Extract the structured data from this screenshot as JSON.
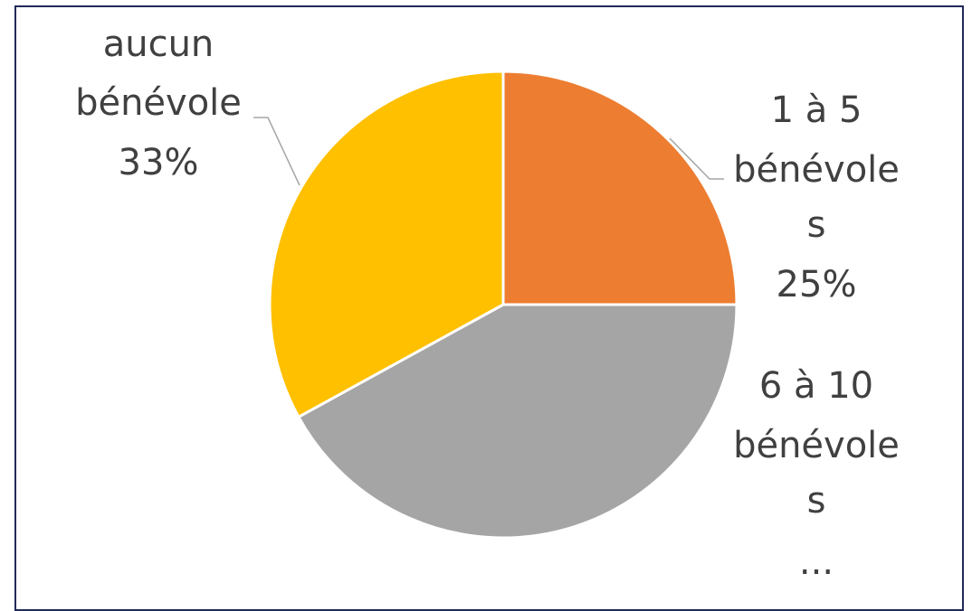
{
  "chart_data": {
    "type": "pie",
    "slices": [
      {
        "category": "1 à 5 bénévoles",
        "value": 25,
        "color": "#ED7D31",
        "label_lines": [
          "1 à 5",
          "bénévole",
          "s",
          "25%"
        ]
      },
      {
        "category": "6 à 10 bénévoles",
        "value": 42,
        "color": "#A5A5A5",
        "label_lines": [
          "6 à 10",
          "bénévole",
          "s",
          "..."
        ]
      },
      {
        "category": "aucun bénévole",
        "value": 33,
        "color": "#FFC000",
        "label_lines": [
          "aucun",
          "bénévole",
          "33%"
        ]
      }
    ],
    "colors": {
      "frame": "#1F2A5A",
      "label_text": "#404040",
      "leader_line": "#A6A6A6",
      "slice_border": "#FFFFFF"
    }
  }
}
